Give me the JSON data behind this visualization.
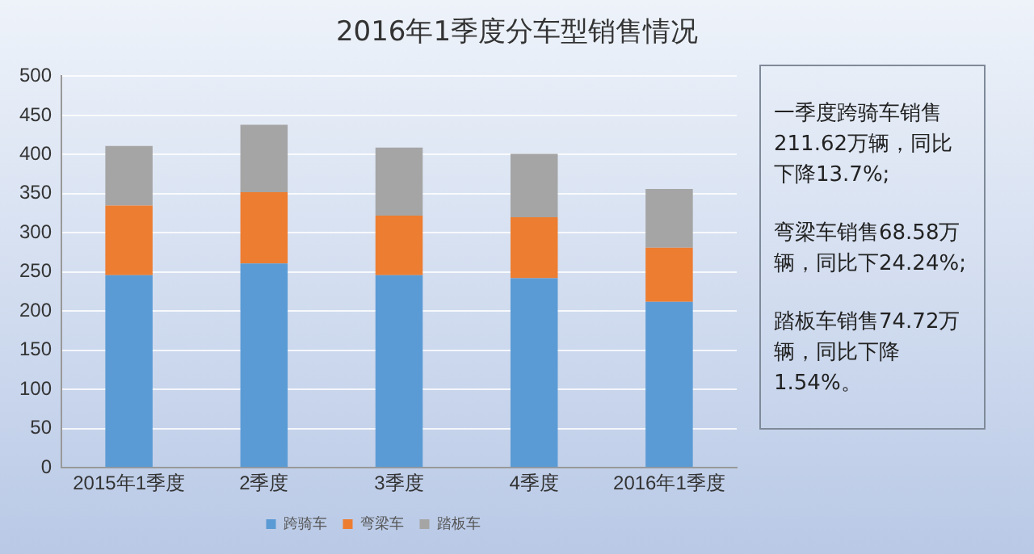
{
  "chart_data": {
    "type": "bar",
    "title": "2016年1季度分车型销售情况",
    "categories": [
      "2015年1季度",
      "2季度",
      "3季度",
      "4季度",
      "2016年1季度"
    ],
    "series": [
      {
        "name": "跨骑车",
        "color": "#5b9bd5",
        "values": [
          246,
          261,
          246,
          242,
          212
        ]
      },
      {
        "name": "弯梁车",
        "color": "#ed7d31",
        "values": [
          89,
          91,
          76,
          78,
          69
        ]
      },
      {
        "name": "踏板车",
        "color": "#a5a5a5",
        "values": [
          76,
          86,
          87,
          81,
          75
        ]
      }
    ],
    "stacked": true,
    "ylim": [
      0,
      500
    ],
    "yticks": [
      0,
      50,
      100,
      150,
      200,
      250,
      300,
      350,
      400,
      450,
      500
    ],
    "grid": "y",
    "legend": "bottom",
    "annotations": [
      "一季度跨骑车销售211.62万辆，同比下降13.7%;",
      "弯梁车销售68.58万辆，同比下24.24%;",
      "踏板车销售74.72万辆，同比下降1.54%。"
    ]
  }
}
